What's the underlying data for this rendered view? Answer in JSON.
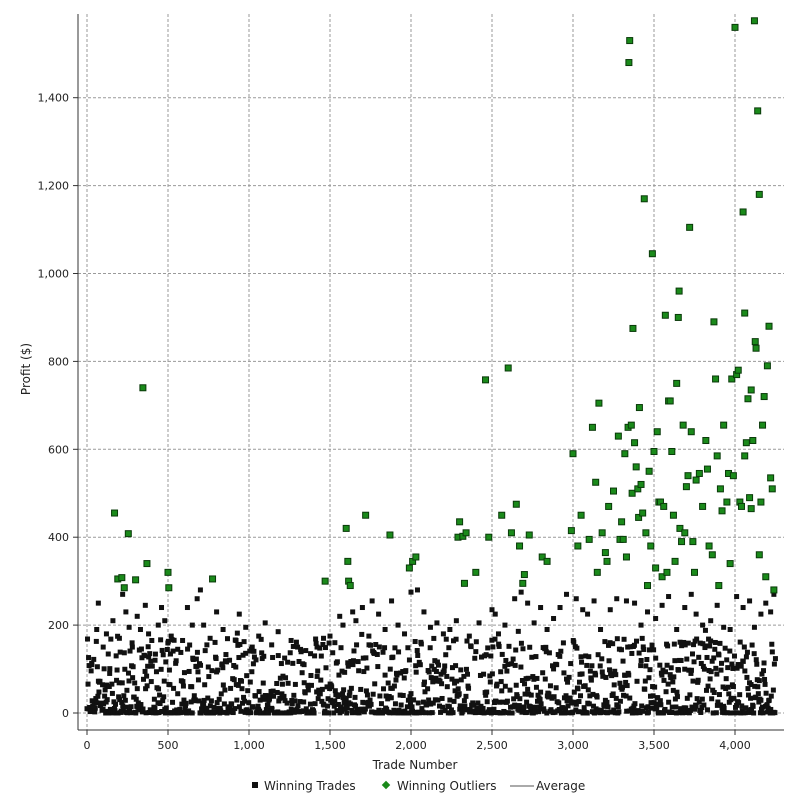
{
  "chart_data": {
    "type": "scatter",
    "title": "",
    "xlabel": "Trade Number",
    "ylabel": "Profit ($)",
    "xlim": [
      -50,
      4300
    ],
    "ylim": [
      -20,
      1600
    ],
    "x_ticks": [
      0,
      500,
      1000,
      1500,
      2000,
      2500,
      3000,
      3500,
      4000
    ],
    "x_tick_labels": [
      "0",
      "500",
      "1,000",
      "1,500",
      "2,000",
      "2,500",
      "3,000",
      "3,500",
      "4,000"
    ],
    "y_ticks": [
      0,
      200,
      400,
      600,
      800,
      1000,
      1200,
      1400
    ],
    "y_tick_labels": [
      "0",
      "200",
      "400",
      "600",
      "800",
      "1,000",
      "1,200",
      "1,400"
    ],
    "grid": true,
    "legend_position": "bottom",
    "colors": {
      "winning_trades": "#111111",
      "winning_outliers": "#1a8a1a",
      "outlier_border": "#0a3a0a",
      "average": "#555555",
      "grid": "#9a9a9a"
    },
    "series": [
      {
        "name": "Winning Outliers",
        "marker": "square",
        "points": [
          [
            170,
            455
          ],
          [
            190,
            305
          ],
          [
            215,
            308
          ],
          [
            230,
            285
          ],
          [
            255,
            408
          ],
          [
            300,
            303
          ],
          [
            345,
            740
          ],
          [
            370,
            340
          ],
          [
            500,
            320
          ],
          [
            505,
            285
          ],
          [
            775,
            305
          ],
          [
            1470,
            300
          ],
          [
            1600,
            420
          ],
          [
            1610,
            345
          ],
          [
            1615,
            300
          ],
          [
            1625,
            290
          ],
          [
            1720,
            450
          ],
          [
            1870,
            405
          ],
          [
            1990,
            330
          ],
          [
            2010,
            345
          ],
          [
            2030,
            355
          ],
          [
            2290,
            400
          ],
          [
            2300,
            435
          ],
          [
            2320,
            402
          ],
          [
            2330,
            295
          ],
          [
            2340,
            410
          ],
          [
            2400,
            320
          ],
          [
            2460,
            758
          ],
          [
            2480,
            400
          ],
          [
            2560,
            450
          ],
          [
            2600,
            785
          ],
          [
            2620,
            410
          ],
          [
            2650,
            475
          ],
          [
            2670,
            380
          ],
          [
            2690,
            295
          ],
          [
            2700,
            315
          ],
          [
            2730,
            405
          ],
          [
            2810,
            355
          ],
          [
            2840,
            345
          ],
          [
            2990,
            415
          ],
          [
            3000,
            590
          ],
          [
            3030,
            380
          ],
          [
            3050,
            450
          ],
          [
            3100,
            395
          ],
          [
            3120,
            650
          ],
          [
            3140,
            525
          ],
          [
            3150,
            320
          ],
          [
            3160,
            705
          ],
          [
            3180,
            410
          ],
          [
            3200,
            365
          ],
          [
            3210,
            345
          ],
          [
            3220,
            470
          ],
          [
            3250,
            505
          ],
          [
            3280,
            630
          ],
          [
            3290,
            395
          ],
          [
            3300,
            435
          ],
          [
            3310,
            395
          ],
          [
            3320,
            590
          ],
          [
            3330,
            355
          ],
          [
            3340,
            650
          ],
          [
            3345,
            1480
          ],
          [
            3350,
            1530
          ],
          [
            3360,
            655
          ],
          [
            3365,
            500
          ],
          [
            3370,
            875
          ],
          [
            3380,
            615
          ],
          [
            3390,
            560
          ],
          [
            3400,
            510
          ],
          [
            3405,
            445
          ],
          [
            3410,
            695
          ],
          [
            3420,
            520
          ],
          [
            3430,
            455
          ],
          [
            3440,
            1170
          ],
          [
            3450,
            410
          ],
          [
            3460,
            290
          ],
          [
            3470,
            550
          ],
          [
            3480,
            380
          ],
          [
            3490,
            1045
          ],
          [
            3500,
            595
          ],
          [
            3510,
            330
          ],
          [
            3520,
            640
          ],
          [
            3530,
            480
          ],
          [
            3540,
            480
          ],
          [
            3550,
            310
          ],
          [
            3560,
            470
          ],
          [
            3570,
            905
          ],
          [
            3580,
            320
          ],
          [
            3590,
            710
          ],
          [
            3600,
            710
          ],
          [
            3610,
            595
          ],
          [
            3620,
            450
          ],
          [
            3630,
            345
          ],
          [
            3640,
            750
          ],
          [
            3650,
            900
          ],
          [
            3655,
            960
          ],
          [
            3660,
            420
          ],
          [
            3670,
            390
          ],
          [
            3680,
            655
          ],
          [
            3690,
            410
          ],
          [
            3700,
            515
          ],
          [
            3710,
            540
          ],
          [
            3720,
            1105
          ],
          [
            3730,
            640
          ],
          [
            3740,
            390
          ],
          [
            3750,
            320
          ],
          [
            3760,
            530
          ],
          [
            3780,
            545
          ],
          [
            3800,
            470
          ],
          [
            3820,
            620
          ],
          [
            3830,
            555
          ],
          [
            3840,
            380
          ],
          [
            3860,
            360
          ],
          [
            3870,
            890
          ],
          [
            3880,
            760
          ],
          [
            3890,
            585
          ],
          [
            3900,
            290
          ],
          [
            3910,
            510
          ],
          [
            3920,
            460
          ],
          [
            3930,
            655
          ],
          [
            3960,
            545
          ],
          [
            3970,
            340
          ],
          [
            3980,
            760
          ],
          [
            3990,
            540
          ],
          [
            4000,
            1560
          ],
          [
            4010,
            770
          ],
          [
            4020,
            780
          ],
          [
            4030,
            480
          ],
          [
            4040,
            470
          ],
          [
            4050,
            1140
          ],
          [
            4060,
            910
          ],
          [
            4070,
            615
          ],
          [
            4080,
            715
          ],
          [
            4090,
            490
          ],
          [
            4100,
            735
          ],
          [
            4110,
            620
          ],
          [
            4120,
            1575
          ],
          [
            4125,
            845
          ],
          [
            4130,
            830
          ],
          [
            4140,
            1370
          ],
          [
            4150,
            1180
          ],
          [
            4160,
            480
          ],
          [
            4170,
            655
          ],
          [
            4180,
            720
          ],
          [
            4190,
            310
          ],
          [
            4200,
            790
          ],
          [
            4210,
            880
          ],
          [
            4220,
            535
          ],
          [
            4230,
            510
          ],
          [
            4240,
            280
          ],
          [
            4150,
            360
          ],
          [
            4100,
            465
          ],
          [
            4060,
            585
          ],
          [
            3950,
            480
          ]
        ]
      },
      {
        "name": "Winning Trades",
        "marker": "square",
        "points": [
          [
            30,
            110
          ],
          [
            60,
            190
          ],
          [
            70,
            250
          ],
          [
            100,
            150
          ],
          [
            120,
            180
          ],
          [
            140,
            90
          ],
          [
            160,
            210
          ],
          [
            180,
            130
          ],
          [
            200,
            170
          ],
          [
            220,
            270
          ],
          [
            240,
            230
          ],
          [
            260,
            195
          ],
          [
            280,
            150
          ],
          [
            310,
            220
          ],
          [
            330,
            190
          ],
          [
            360,
            245
          ],
          [
            380,
            180
          ],
          [
            400,
            165
          ],
          [
            420,
            120
          ],
          [
            440,
            200
          ],
          [
            460,
            240
          ],
          [
            480,
            210
          ],
          [
            520,
            175
          ],
          [
            560,
            145
          ],
          [
            590,
            165
          ],
          [
            620,
            240
          ],
          [
            650,
            200
          ],
          [
            680,
            260
          ],
          [
            700,
            280
          ],
          [
            720,
            200
          ],
          [
            740,
            155
          ],
          [
            760,
            170
          ],
          [
            800,
            230
          ],
          [
            840,
            190
          ],
          [
            880,
            120
          ],
          [
            920,
            165
          ],
          [
            940,
            225
          ],
          [
            980,
            195
          ],
          [
            1020,
            150
          ],
          [
            1060,
            175
          ],
          [
            1100,
            205
          ],
          [
            1140,
            155
          ],
          [
            1180,
            185
          ],
          [
            1220,
            125
          ],
          [
            1260,
            165
          ],
          [
            1300,
            150
          ],
          [
            1340,
            110
          ],
          [
            1380,
            135
          ],
          [
            1420,
            150
          ],
          [
            1460,
            170
          ],
          [
            1500,
            175
          ],
          [
            1530,
            160
          ],
          [
            1560,
            220
          ],
          [
            1580,
            200
          ],
          [
            1640,
            230
          ],
          [
            1660,
            210
          ],
          [
            1700,
            240
          ],
          [
            1740,
            175
          ],
          [
            1760,
            255
          ],
          [
            1800,
            225
          ],
          [
            1840,
            190
          ],
          [
            1880,
            255
          ],
          [
            1920,
            200
          ],
          [
            1960,
            180
          ],
          [
            2000,
            275
          ],
          [
            2040,
            280
          ],
          [
            2080,
            230
          ],
          [
            2120,
            195
          ],
          [
            2160,
            205
          ],
          [
            2200,
            180
          ],
          [
            2240,
            190
          ],
          [
            2280,
            210
          ],
          [
            2360,
            175
          ],
          [
            2420,
            205
          ],
          [
            2500,
            235
          ],
          [
            2520,
            225
          ],
          [
            2540,
            180
          ],
          [
            2580,
            200
          ],
          [
            2640,
            260
          ],
          [
            2680,
            275
          ],
          [
            2720,
            250
          ],
          [
            2760,
            205
          ],
          [
            2800,
            240
          ],
          [
            2840,
            190
          ],
          [
            2880,
            215
          ],
          [
            2920,
            240
          ],
          [
            2960,
            270
          ],
          [
            3020,
            260
          ],
          [
            3060,
            235
          ],
          [
            3090,
            225
          ],
          [
            3130,
            255
          ],
          [
            3170,
            190
          ],
          [
            3230,
            235
          ],
          [
            3270,
            260
          ],
          [
            3330,
            255
          ],
          [
            3380,
            250
          ],
          [
            3420,
            200
          ],
          [
            3460,
            230
          ],
          [
            3510,
            215
          ],
          [
            3550,
            245
          ],
          [
            3590,
            265
          ],
          [
            3640,
            190
          ],
          [
            3690,
            240
          ],
          [
            3730,
            270
          ],
          [
            3760,
            225
          ],
          [
            3800,
            200
          ],
          [
            3850,
            210
          ],
          [
            3890,
            245
          ],
          [
            3930,
            195
          ],
          [
            3970,
            190
          ],
          [
            4010,
            265
          ],
          [
            4050,
            240
          ],
          [
            4090,
            255
          ],
          [
            4120,
            195
          ],
          [
            4160,
            225
          ],
          [
            4190,
            250
          ],
          [
            4220,
            230
          ],
          [
            4240,
            270
          ]
        ]
      },
      {
        "name": "Average",
        "values": [],
        "marker": "line"
      }
    ]
  }
}
